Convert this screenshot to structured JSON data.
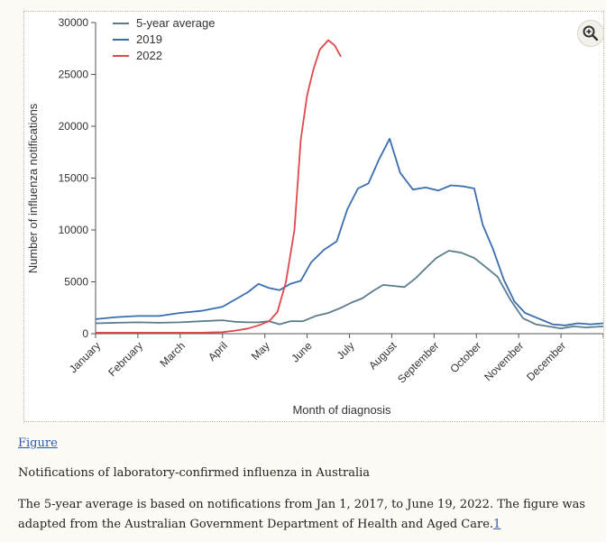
{
  "chart_data": {
    "type": "line",
    "xlabel": "Month of diagnosis",
    "ylabel": "Number of influenza notifications",
    "ylim": [
      0,
      30000
    ],
    "xlim": [
      0,
      12
    ],
    "yticks": [
      0,
      5000,
      10000,
      15000,
      20000,
      25000,
      30000
    ],
    "ytick_labels": [
      "0",
      "5000",
      "10000",
      "15000",
      "20000",
      "25000",
      "30000"
    ],
    "months": [
      "January",
      "February",
      "March",
      "April",
      "May",
      "June",
      "July",
      "August",
      "September",
      "October",
      "November",
      "December"
    ],
    "grid": false,
    "legend_position": "top-left",
    "series": [
      {
        "name": "5-year average",
        "color": "#5a7d8e",
        "x": [
          0,
          0.5,
          1,
          1.5,
          2,
          2.5,
          3,
          3.3,
          3.6,
          3.85,
          4.1,
          4.35,
          4.6,
          4.9,
          5.2,
          5.5,
          5.8,
          6.05,
          6.3,
          6.55,
          6.8,
          7.05,
          7.3,
          7.55,
          7.8,
          8.05,
          8.35,
          8.65,
          8.95,
          9.2,
          9.5,
          9.8,
          10.1,
          10.4,
          10.7,
          11.0,
          11.3,
          11.6,
          12
        ],
        "y": [
          1000,
          1050,
          1100,
          1050,
          1100,
          1200,
          1300,
          1150,
          1100,
          1100,
          1200,
          900,
          1200,
          1200,
          1700,
          2000,
          2500,
          3000,
          3400,
          4100,
          4700,
          4600,
          4500,
          5300,
          6300,
          7300,
          8000,
          7800,
          7300,
          6500,
          5500,
          3300,
          1500,
          900,
          700,
          500,
          700,
          600,
          700
        ]
      },
      {
        "name": "2019",
        "color": "#3a6eaf",
        "x": [
          0,
          0.5,
          1,
          1.5,
          2,
          2.5,
          3,
          3.3,
          3.6,
          3.85,
          4.1,
          4.35,
          4.6,
          4.85,
          5.1,
          5.4,
          5.7,
          5.95,
          6.2,
          6.45,
          6.7,
          6.95,
          7.2,
          7.5,
          7.8,
          8.1,
          8.4,
          8.7,
          8.95,
          9.15,
          9.4,
          9.65,
          9.9,
          10.15,
          10.45,
          10.8,
          11.1,
          11.4,
          11.7,
          12
        ],
        "y": [
          1400,
          1600,
          1700,
          1700,
          2000,
          2200,
          2600,
          3300,
          4000,
          4800,
          4400,
          4200,
          4800,
          5100,
          6900,
          8100,
          8900,
          12000,
          14000,
          14500,
          16800,
          18800,
          15500,
          13900,
          14100,
          13800,
          14300,
          14200,
          14000,
          10500,
          8100,
          5200,
          3100,
          2000,
          1500,
          900,
          800,
          1000,
          900,
          1000
        ]
      },
      {
        "name": "2022",
        "color": "#e0484a",
        "x": [
          0,
          1,
          2,
          2.5,
          3,
          3.3,
          3.6,
          3.85,
          4.1,
          4.3,
          4.5,
          4.7,
          4.85,
          5.0,
          5.15,
          5.3,
          5.5,
          5.65,
          5.8
        ],
        "y": [
          100,
          100,
          100,
          100,
          150,
          300,
          500,
          800,
          1200,
          2100,
          5000,
          10000,
          18700,
          23000,
          25500,
          27400,
          28300,
          27800,
          26700
        ]
      }
    ]
  },
  "figure": {
    "link_label": "Figure",
    "title": "Notifications of laboratory-confirmed influenza in Australia",
    "caption": "The 5-year average is based on notifications from Jan 1, 2017, to June 19, 2022. The figure was adapted from the Australian Government Department of Health and Aged Care.",
    "reference": "1"
  },
  "icons": {
    "zoom": "zoom-in-icon"
  }
}
